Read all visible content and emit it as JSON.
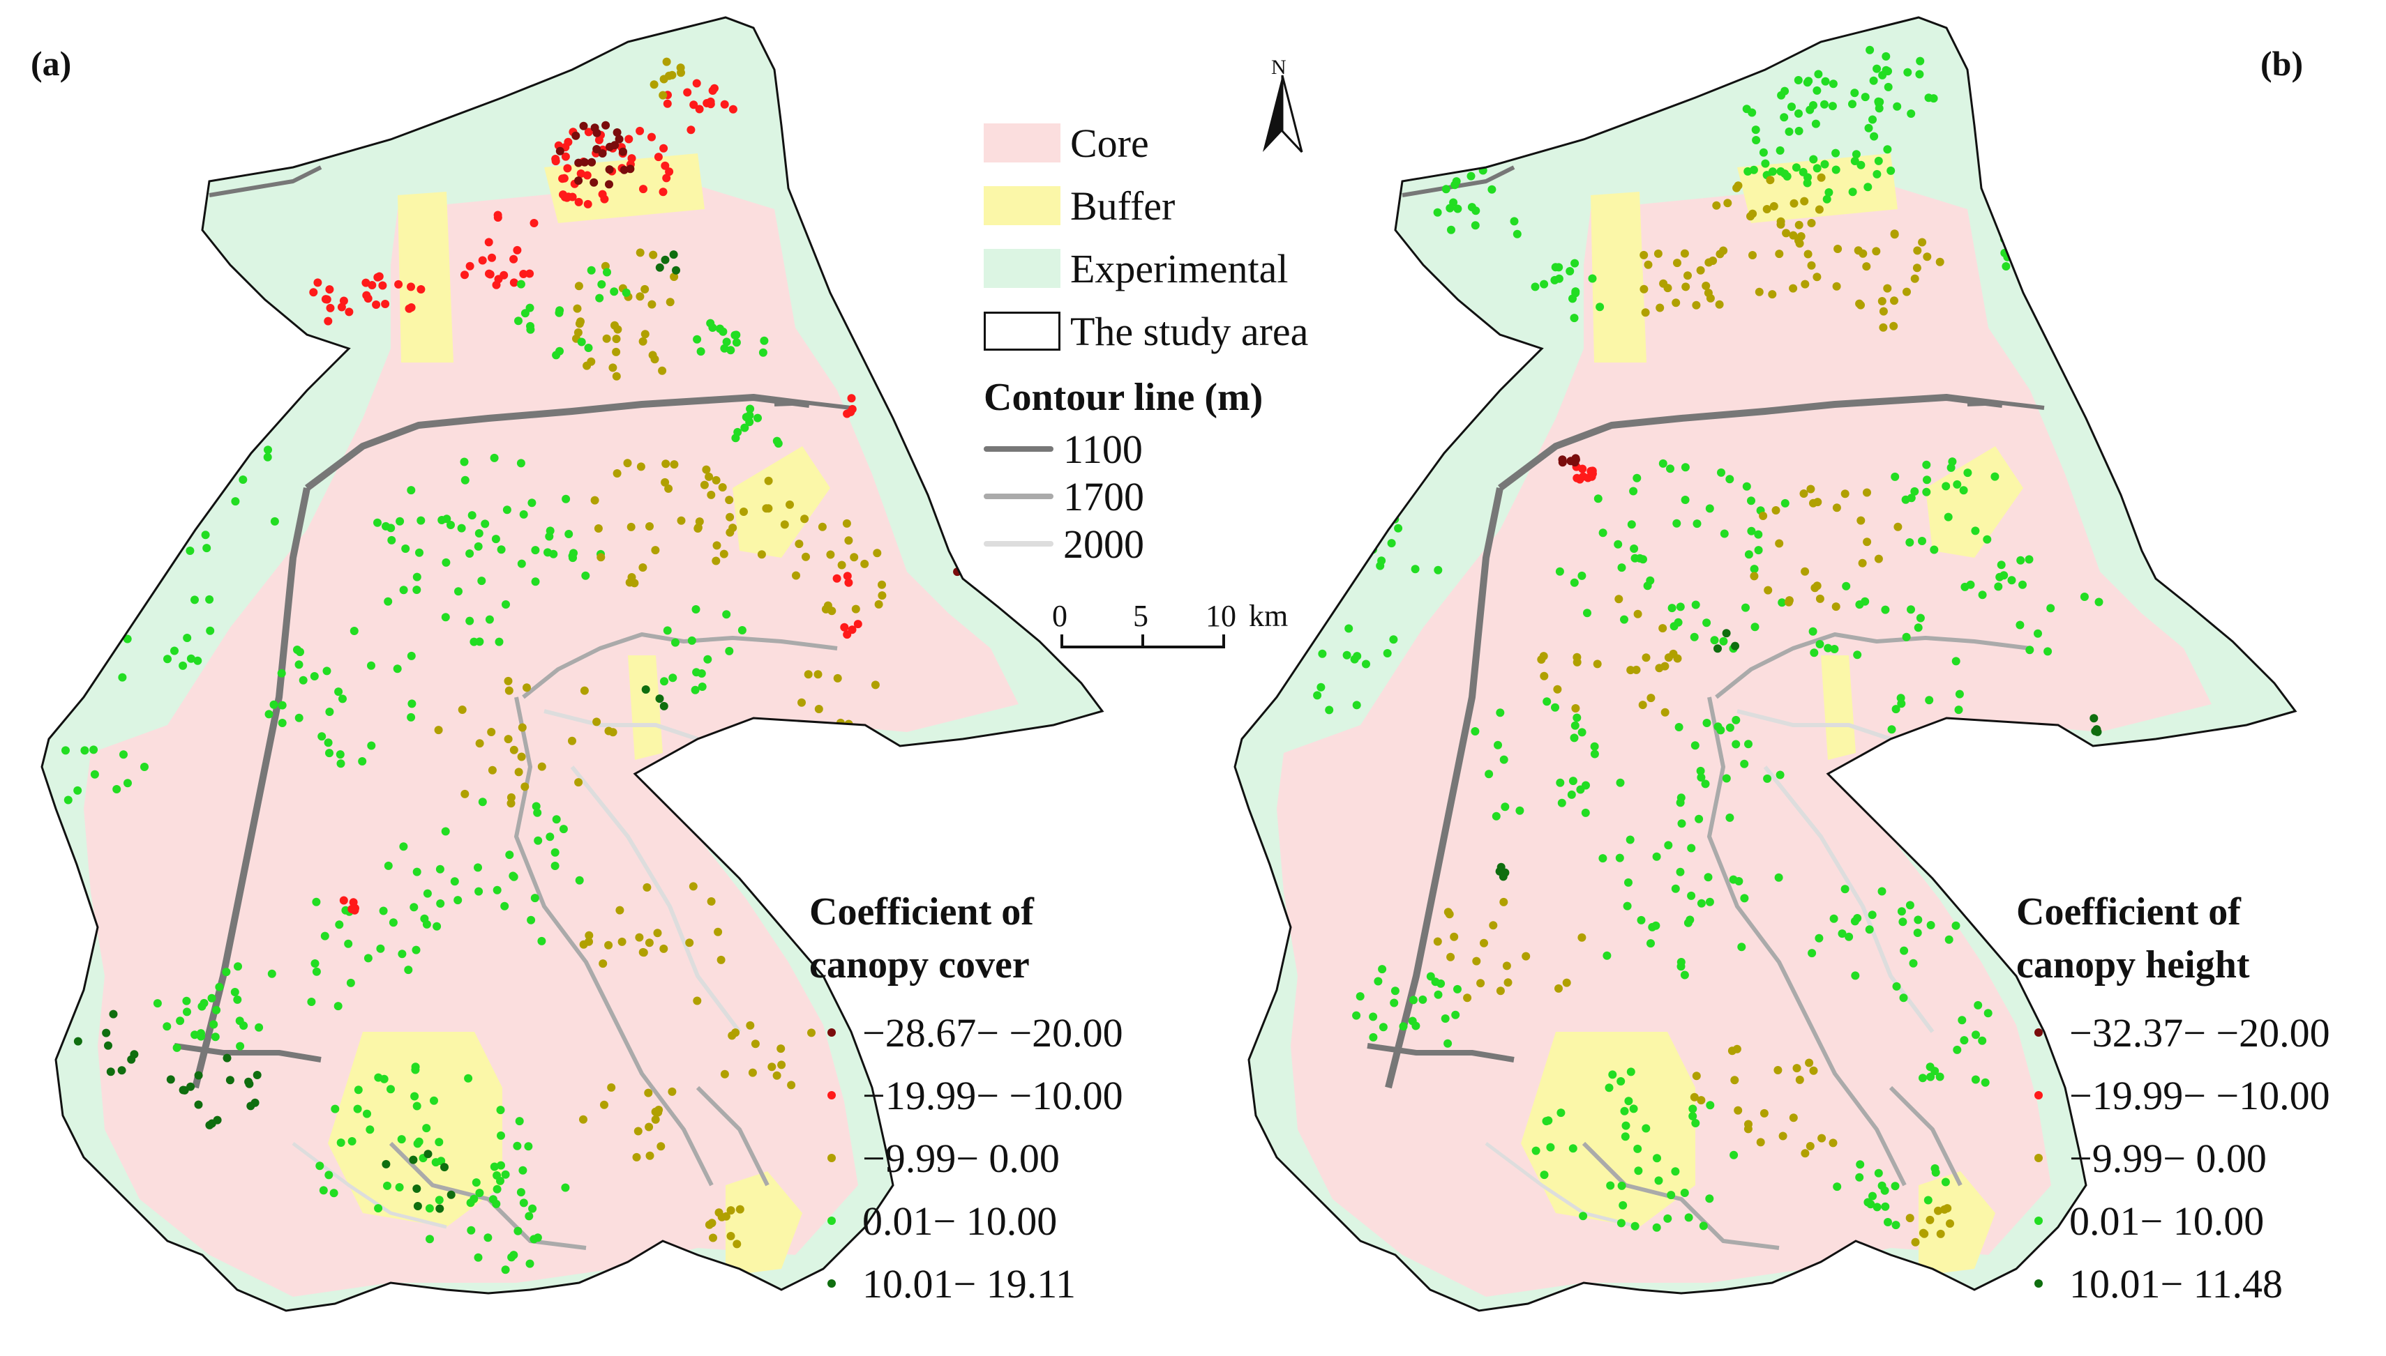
{
  "zones": {
    "core": {
      "label": "Core",
      "color": "#fbdede"
    },
    "buffer": {
      "label": "Buffer",
      "color": "#fbf7a8"
    },
    "experimental": {
      "label": "Experimental",
      "color": "#dcf5e3"
    },
    "boundary": {
      "label": "The study area"
    }
  },
  "contour": {
    "title": "Contour line (m)",
    "lines": [
      {
        "label": "1100",
        "color": "#777777"
      },
      {
        "label": "1700",
        "color": "#aaaaaa"
      },
      {
        "label": "2000",
        "color": "#dddddd"
      }
    ]
  },
  "north_arrow": {
    "label": "N"
  },
  "scale_bar": {
    "ticks": [
      "0",
      "5",
      "10"
    ],
    "unit": "km"
  },
  "class_colors": [
    "#7a0c0c",
    "#ff1a1a",
    "#b0a000",
    "#22dd22",
    "#0f6e0f"
  ],
  "panels": [
    {
      "label": "(a)",
      "legend_title_1": "Coefficient of",
      "legend_title_2": "canopy cover",
      "classes": [
        "−28.67− −20.00",
        "−19.99− −10.00",
        "−9.99− 0.00",
        "0.01− 10.00",
        "10.01− 19.11"
      ]
    },
    {
      "label": "(b)",
      "legend_title_1": "Coefficient of",
      "legend_title_2": "canopy height",
      "classes": [
        "−32.37− −20.00",
        "−19.99− −10.00",
        "−9.99− 0.00",
        "0.01− 10.00",
        "10.01− 11.48"
      ]
    }
  ]
}
